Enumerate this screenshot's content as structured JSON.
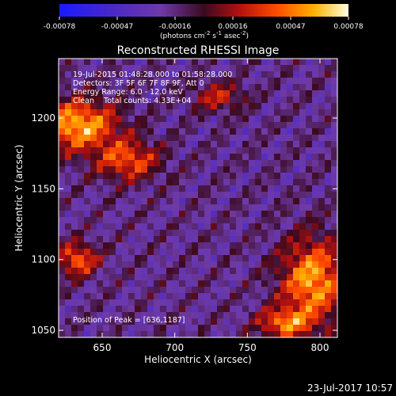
{
  "chart_data": {
    "type": "heatmap",
    "title": "Reconstructed RHESSI Image",
    "xlabel": "Heliocentric X (arcsec)",
    "ylabel": "Heliocentric Y (arcsec)",
    "xlim": [
      620,
      812
    ],
    "ylim": [
      1045,
      1242
    ],
    "xticks": [
      650,
      700,
      750,
      800
    ],
    "yticks": [
      1050,
      1100,
      1150,
      1200
    ],
    "colorbar": {
      "ticks": [
        "-0.00078",
        "-0.00047",
        "-0.00016",
        "0.00016",
        "0.00047",
        "0.00078"
      ],
      "unit_main": "(photons cm",
      "unit_exp1": "-2",
      "unit_mid": " s",
      "unit_exp2": "-1",
      "unit_end": " asec",
      "unit_exp3": "-2",
      "unit_close": ")",
      "range": [
        -0.00078,
        0.00078
      ]
    },
    "annotations": {
      "line1": "19-Jul-2015 01:48:28.000 to 01:58:28.000",
      "line2": "Detectors: 3F 5F 6F 7F 8F 9F, Att 0",
      "line3": "Energy Range: 6.0 - 12.0 keV",
      "line4": "Clean    Total counts: 4.33E+04",
      "peak": "Position of Peak = [636,1187]"
    },
    "timestamp": "23-Jul-2017 10:57",
    "emission_regions": [
      {
        "cx": 633,
        "cy": 1195,
        "rx": 28,
        "ry": 18,
        "peak": 0.00078
      },
      {
        "cx": 668,
        "cy": 1170,
        "rx": 22,
        "ry": 14,
        "peak": 0.00055
      },
      {
        "cx": 633,
        "cy": 1100,
        "rx": 14,
        "ry": 12,
        "peak": 0.0006
      },
      {
        "cx": 795,
        "cy": 1085,
        "rx": 22,
        "ry": 30,
        "peak": 0.00075
      },
      {
        "cx": 775,
        "cy": 1055,
        "rx": 18,
        "ry": 10,
        "peak": 0.0006
      },
      {
        "cx": 730,
        "cy": 1215,
        "rx": 18,
        "ry": 10,
        "peak": 0.0004
      }
    ]
  }
}
